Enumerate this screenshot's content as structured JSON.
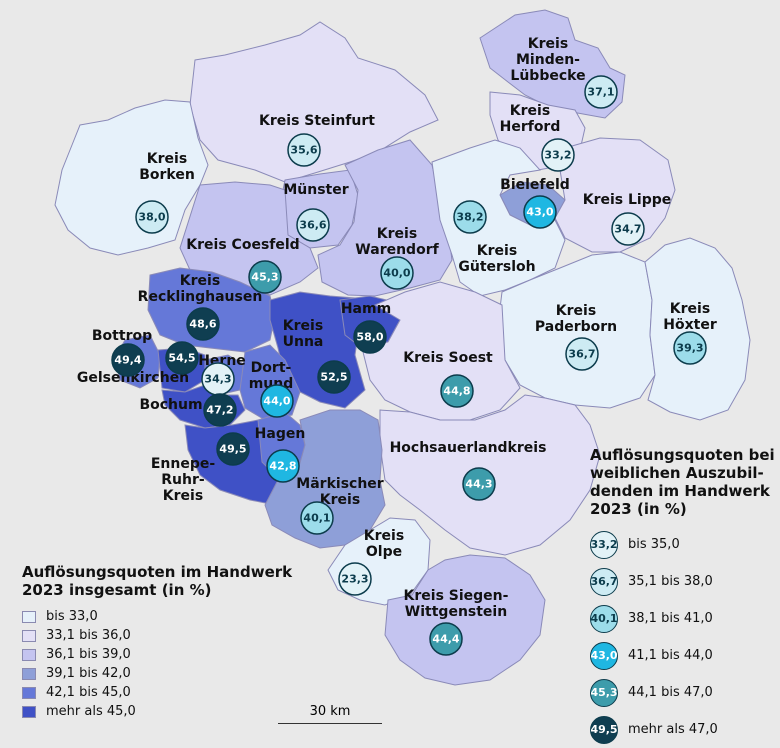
{
  "colors": {
    "bg": "#e9e9e9",
    "classes": [
      "#e6f1fa",
      "#e3e0f6",
      "#c4c4f0",
      "#8e9fd8",
      "#6578d8",
      "#3f51c6"
    ],
    "circles": [
      "#e2f2f7",
      "#cdebf3",
      "#9cdcea",
      "#1fb7e2",
      "#3d9cab",
      "#0f3e51"
    ]
  },
  "regions": [
    {
      "id": "minden",
      "label": "Kreis\nMinden-\nLübbecke",
      "value": "37,1",
      "cls": 2,
      "ccls": 1
    },
    {
      "id": "steinfurt",
      "label": "Kreis Steinfurt",
      "value": "35,6",
      "cls": 1,
      "ccls": 1
    },
    {
      "id": "herford",
      "label": "Kreis\nHerford",
      "value": "33,2",
      "cls": 1,
      "ccls": 0
    },
    {
      "id": "borken",
      "label": "Kreis\nBorken",
      "value": "38,0",
      "cls": 0,
      "ccls": 1
    },
    {
      "id": "muenster",
      "label": "Münster",
      "value": "36,6",
      "cls": 2,
      "ccls": 1
    },
    {
      "id": "bielefeld",
      "label": "Bielefeld",
      "value": "43,0",
      "cls": 3,
      "ccls": 3
    },
    {
      "id": "lippe",
      "label": "Kreis Lippe",
      "value": "34,7",
      "cls": 1,
      "ccls": 0
    },
    {
      "id": "warendorf",
      "label": "Kreis\nWarendorf",
      "value": "40,0",
      "cls": 2,
      "ccls": 2
    },
    {
      "id": "guetersloh",
      "label": "Kreis\nGütersloh",
      "value": "38,2",
      "cls": 0,
      "ccls": 2
    },
    {
      "id": "coesfeld",
      "label": "Kreis Coesfeld",
      "value": "45,3",
      "cls": 2,
      "ccls": 4
    },
    {
      "id": "recklinghausen",
      "label": "Kreis\nRecklinghausen",
      "value": "48,6",
      "cls": 4,
      "ccls": 5
    },
    {
      "id": "unna",
      "label": "Kreis\nUnna",
      "value": "52,5",
      "cls": 5,
      "ccls": 5
    },
    {
      "id": "hamm",
      "label": "Hamm",
      "value": "58,0",
      "cls": 5,
      "ccls": 5
    },
    {
      "id": "paderborn",
      "label": "Kreis\nPaderborn",
      "value": "36,7",
      "cls": 0,
      "ccls": 1
    },
    {
      "id": "hoexter",
      "label": "Kreis\nHöxter",
      "value": "39,3",
      "cls": 0,
      "ccls": 2
    },
    {
      "id": "bottrop",
      "label": "Bottrop",
      "value": "49,4",
      "cls": 4,
      "ccls": 5
    },
    {
      "id": "gelsenkirchen",
      "label": "Gelsenkirchen",
      "value": "54,5",
      "cls": 5,
      "ccls": 5
    },
    {
      "id": "herne",
      "label": "Herne",
      "value": "34,3",
      "cls": 4,
      "ccls": 0
    },
    {
      "id": "dortmund",
      "label": "Dort-\nmund",
      "value": "44,0",
      "cls": 4,
      "ccls": 3
    },
    {
      "id": "soest",
      "label": "Kreis Soest",
      "value": "44,8",
      "cls": 1,
      "ccls": 4
    },
    {
      "id": "bochum",
      "label": "Bochum",
      "value": "47,2",
      "cls": 5,
      "ccls": 5
    },
    {
      "id": "ennepe",
      "label": "Ennepe-\nRuhr-\nKreis",
      "value": "49,5",
      "cls": 5,
      "ccls": 5
    },
    {
      "id": "hagen",
      "label": "Hagen",
      "value": "42,8",
      "cls": 4,
      "ccls": 3
    },
    {
      "id": "hochsauerland",
      "label": "Hochsauerlandkreis",
      "value": "44,3",
      "cls": 1,
      "ccls": 4
    },
    {
      "id": "maerkisch",
      "label": "Märkischer\nKreis",
      "value": "40,1",
      "cls": 3,
      "ccls": 2
    },
    {
      "id": "olpe",
      "label": "Kreis\nOlpe",
      "value": "23,3",
      "cls": 0,
      "ccls": 0
    },
    {
      "id": "siegen",
      "label": "Kreis Siegen-\nWittgenstein",
      "value": "44,4",
      "cls": 2,
      "ccls": 4
    }
  ],
  "legend_total": {
    "title": "Auflösungsquoten im Handwerk\n2023 insgesamt (in %)",
    "items": [
      "bis 33,0",
      "33,1 bis 36,0",
      "36,1 bis 39,0",
      "39,1 bis 42,0",
      "42,1 bis 45,0",
      "mehr als 45,0"
    ]
  },
  "legend_female": {
    "title": "Auflösungsquoten bei\nweiblichen Auszubil-\ndenden im Handwerk\n2023 (in %)",
    "items": [
      {
        "sample": "33,2",
        "label": "bis 35,0"
      },
      {
        "sample": "36,7",
        "label": "35,1 bis 38,0"
      },
      {
        "sample": "40,1",
        "label": "38,1 bis 41,0"
      },
      {
        "sample": "43,0",
        "label": "41,1 bis 44,0"
      },
      {
        "sample": "45,3",
        "label": "44,1 bis 47,0"
      },
      {
        "sample": "49,5",
        "label": "mehr als 47,0"
      }
    ]
  },
  "scale_label": "30 km"
}
